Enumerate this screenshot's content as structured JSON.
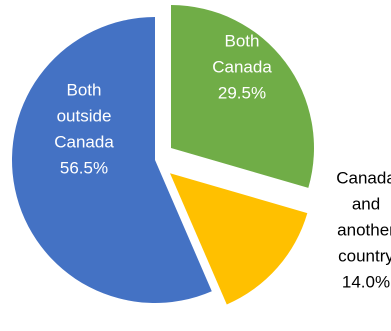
{
  "chart_data": {
    "type": "pie",
    "title": "",
    "legend": "none",
    "start_angle_deg": 0,
    "direction": "clockwise",
    "slices": [
      {
        "label": "Both Canada",
        "label_lines": [
          "Both",
          "Canada"
        ],
        "value": 29.5,
        "value_label": "29.5%",
        "color": "#70ad47",
        "label_color": "#ffffff",
        "exploded": true
      },
      {
        "label": "Canada and another country",
        "label_lines": [
          "Canada",
          "and",
          "another",
          "country"
        ],
        "value": 14.0,
        "value_label": "14.0%",
        "color": "#ffc000",
        "label_color": "#000000",
        "exploded": true
      },
      {
        "label": "Both outside Canada",
        "label_lines": [
          "Both",
          "outside",
          "Canada"
        ],
        "value": 56.5,
        "value_label": "56.5%",
        "color": "#4472c4",
        "label_color": "#ffffff",
        "exploded": false
      }
    ]
  }
}
